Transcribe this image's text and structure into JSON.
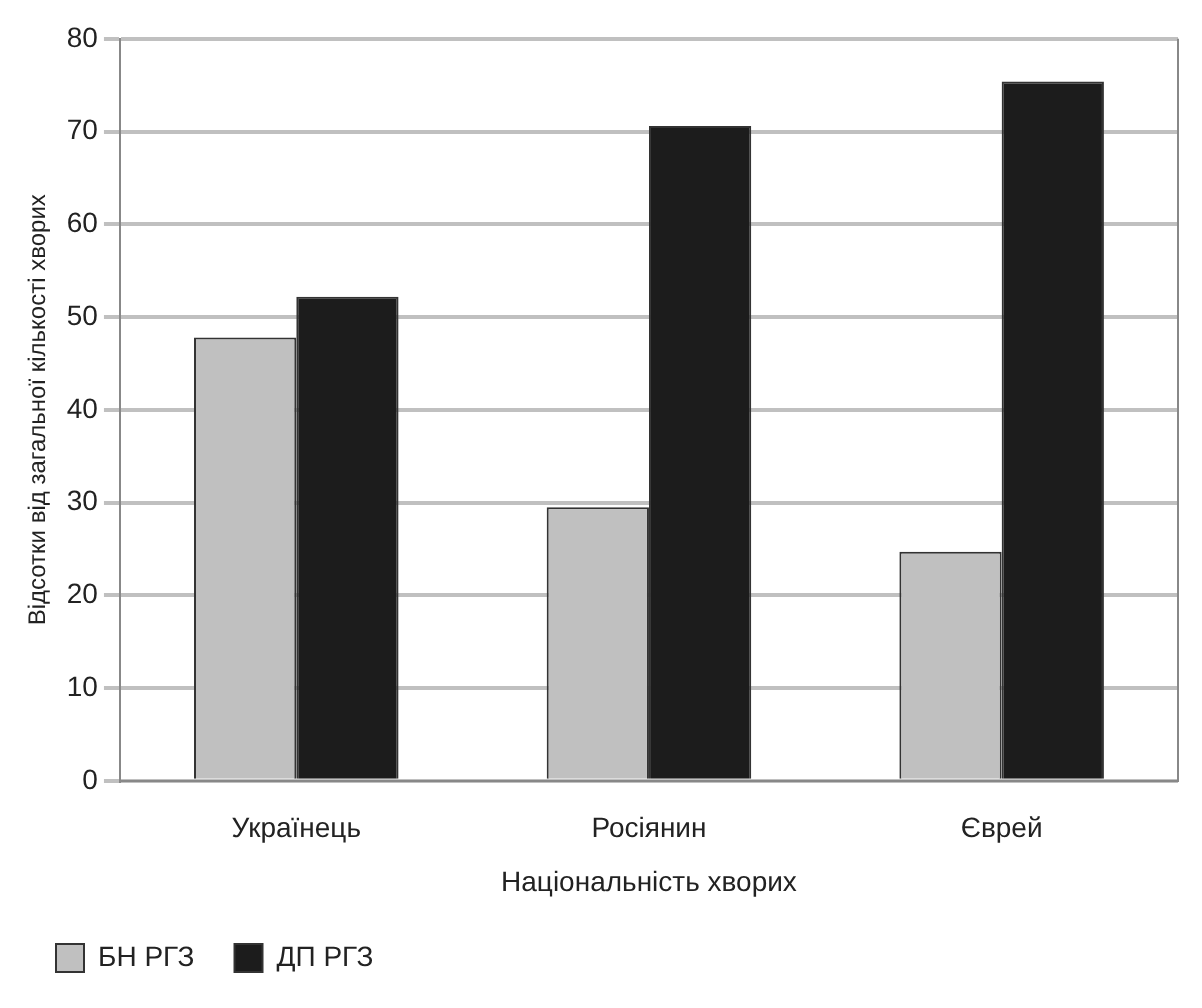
{
  "chart_data": {
    "type": "bar",
    "xlabel": "Національність хворих",
    "ylabel": "Відсотки від загальної кількості хворих",
    "categories": [
      "Українець",
      "Росіянин",
      "Єврей"
    ],
    "series": [
      {
        "name": "БН РГЗ",
        "color": "#c0c0c0",
        "values": [
          47.8,
          29.5,
          24.7
        ]
      },
      {
        "name": "ДП РГЗ",
        "color": "#1c1c1c",
        "values": [
          52.2,
          70.6,
          75.4
        ]
      }
    ],
    "ylim": [
      0,
      80
    ],
    "yticks": [
      0,
      10,
      20,
      30,
      40,
      50,
      60,
      70,
      80
    ],
    "grid": "y",
    "legend": "bottom left"
  }
}
